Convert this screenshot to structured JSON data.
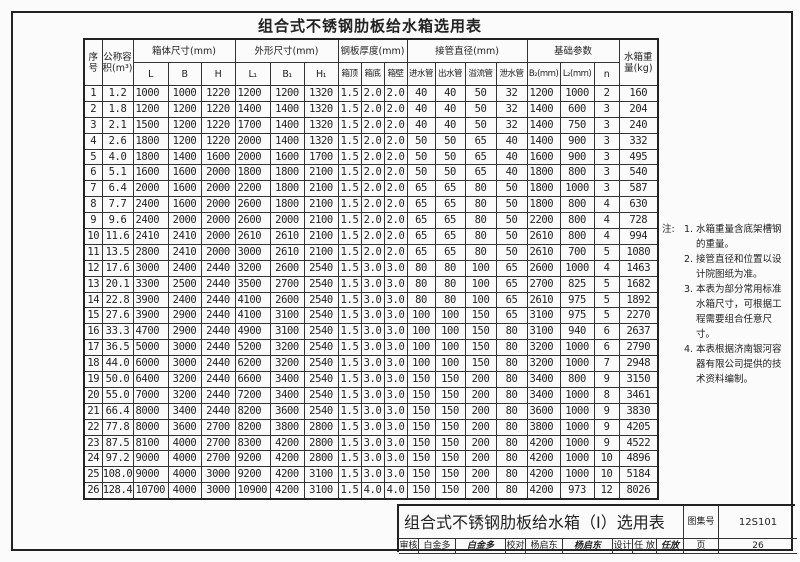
{
  "title": "组合式不锈钢肋板给水箱选用表",
  "table": {
    "header": {
      "seq": "序号",
      "volume": "公称容积(m³)",
      "box_size": "箱体尺寸(mm)",
      "outer_size": "外形尺寸(mm)",
      "plate_thickness": "钢板厚度(mm)",
      "pipe_diameter": "接管直径(mm)",
      "foundation": "基础参数",
      "weight": "水箱重量(kg)",
      "sub": [
        "L",
        "B",
        "H",
        "L₁",
        "B₁",
        "H₁",
        "箱顶",
        "箱底",
        "箱壁",
        "进水管",
        "出水管",
        "溢流管",
        "泄水管",
        "B₂(mm)",
        "L₂(mm)",
        "n"
      ]
    },
    "rows": [
      [
        "1",
        "1.2",
        "1000",
        "1000",
        "1220",
        "1200",
        "1200",
        "1320",
        "1.5",
        "2.0",
        "2.0",
        "40",
        "40",
        "50",
        "32",
        "1200",
        "1000",
        "2",
        "160"
      ],
      [
        "2",
        "1.8",
        "1200",
        "1200",
        "1220",
        "1400",
        "1400",
        "1320",
        "1.5",
        "2.0",
        "2.0",
        "40",
        "40",
        "50",
        "32",
        "1400",
        "600",
        "3",
        "204"
      ],
      [
        "3",
        "2.1",
        "1500",
        "1200",
        "1220",
        "1700",
        "1400",
        "1320",
        "1.5",
        "2.0",
        "2.0",
        "40",
        "40",
        "50",
        "32",
        "1400",
        "750",
        "3",
        "240"
      ],
      [
        "4",
        "2.6",
        "1800",
        "1200",
        "1220",
        "2000",
        "1400",
        "1320",
        "1.5",
        "2.0",
        "2.0",
        "50",
        "50",
        "65",
        "40",
        "1400",
        "900",
        "3",
        "332"
      ],
      [
        "5",
        "4.0",
        "1800",
        "1400",
        "1600",
        "2000",
        "1600",
        "1700",
        "1.5",
        "2.0",
        "2.0",
        "50",
        "50",
        "65",
        "40",
        "1600",
        "900",
        "3",
        "495"
      ],
      [
        "6",
        "5.1",
        "1600",
        "1600",
        "2000",
        "1800",
        "1800",
        "2100",
        "1.5",
        "2.0",
        "2.0",
        "50",
        "50",
        "65",
        "40",
        "1800",
        "800",
        "3",
        "540"
      ],
      [
        "7",
        "6.4",
        "2000",
        "1600",
        "2000",
        "2200",
        "1800",
        "2100",
        "1.5",
        "2.0",
        "2.0",
        "65",
        "65",
        "80",
        "50",
        "1800",
        "1000",
        "3",
        "587"
      ],
      [
        "8",
        "7.7",
        "2400",
        "1600",
        "2000",
        "2600",
        "1800",
        "2100",
        "1.5",
        "2.0",
        "2.0",
        "65",
        "65",
        "80",
        "50",
        "1800",
        "800",
        "4",
        "630"
      ],
      [
        "9",
        "9.6",
        "2400",
        "2000",
        "2000",
        "2600",
        "2000",
        "2100",
        "1.5",
        "2.0",
        "2.0",
        "65",
        "65",
        "80",
        "50",
        "2200",
        "800",
        "4",
        "728"
      ],
      [
        "10",
        "11.6",
        "2410",
        "2410",
        "2000",
        "2610",
        "2610",
        "2100",
        "1.5",
        "2.0",
        "2.0",
        "65",
        "65",
        "80",
        "50",
        "2610",
        "800",
        "4",
        "994"
      ],
      [
        "11",
        "13.5",
        "2800",
        "2410",
        "2000",
        "3000",
        "2610",
        "2100",
        "1.5",
        "2.0",
        "2.0",
        "65",
        "65",
        "80",
        "50",
        "2610",
        "700",
        "5",
        "1080"
      ],
      [
        "12",
        "17.6",
        "3000",
        "2400",
        "2440",
        "3200",
        "2600",
        "2540",
        "1.5",
        "3.0",
        "3.0",
        "80",
        "80",
        "100",
        "65",
        "2600",
        "1000",
        "4",
        "1463"
      ],
      [
        "13",
        "20.1",
        "3300",
        "2500",
        "2440",
        "3500",
        "2700",
        "2540",
        "1.5",
        "3.0",
        "3.0",
        "80",
        "80",
        "100",
        "65",
        "2700",
        "825",
        "5",
        "1682"
      ],
      [
        "14",
        "22.8",
        "3900",
        "2400",
        "2440",
        "4100",
        "2600",
        "2540",
        "1.5",
        "3.0",
        "3.0",
        "80",
        "80",
        "100",
        "65",
        "2610",
        "975",
        "5",
        "1892"
      ],
      [
        "15",
        "27.6",
        "3900",
        "2900",
        "2440",
        "4100",
        "3100",
        "2540",
        "1.5",
        "3.0",
        "3.0",
        "100",
        "100",
        "150",
        "65",
        "3100",
        "975",
        "5",
        "2270"
      ],
      [
        "16",
        "33.3",
        "4700",
        "2900",
        "2440",
        "4900",
        "3100",
        "2540",
        "1.5",
        "3.0",
        "3.0",
        "100",
        "100",
        "150",
        "80",
        "3100",
        "940",
        "6",
        "2637"
      ],
      [
        "17",
        "36.5",
        "5000",
        "3000",
        "2440",
        "5200",
        "3200",
        "2540",
        "1.5",
        "3.0",
        "3.0",
        "100",
        "100",
        "150",
        "80",
        "3200",
        "1000",
        "6",
        "2790"
      ],
      [
        "18",
        "44.0",
        "6000",
        "3000",
        "2440",
        "6200",
        "3200",
        "2540",
        "1.5",
        "3.0",
        "3.0",
        "100",
        "100",
        "150",
        "80",
        "3200",
        "1000",
        "7",
        "2948"
      ],
      [
        "19",
        "50.0",
        "6400",
        "3200",
        "2440",
        "6600",
        "3400",
        "2540",
        "1.5",
        "3.0",
        "3.0",
        "150",
        "150",
        "200",
        "80",
        "3400",
        "800",
        "9",
        "3150"
      ],
      [
        "20",
        "55.0",
        "7000",
        "3200",
        "2440",
        "7200",
        "3400",
        "2540",
        "1.5",
        "3.0",
        "3.0",
        "150",
        "150",
        "200",
        "80",
        "3400",
        "1000",
        "8",
        "3461"
      ],
      [
        "21",
        "66.4",
        "8000",
        "3400",
        "2440",
        "8200",
        "3600",
        "2540",
        "1.5",
        "3.0",
        "3.0",
        "150",
        "150",
        "200",
        "80",
        "3600",
        "1000",
        "9",
        "3830"
      ],
      [
        "22",
        "77.8",
        "8000",
        "3600",
        "2700",
        "8200",
        "3800",
        "2800",
        "1.5",
        "3.0",
        "3.0",
        "150",
        "150",
        "200",
        "80",
        "3800",
        "1000",
        "9",
        "4205"
      ],
      [
        "23",
        "87.5",
        "8100",
        "4000",
        "2700",
        "8300",
        "4200",
        "2800",
        "1.5",
        "3.0",
        "3.0",
        "150",
        "150",
        "200",
        "80",
        "4200",
        "1000",
        "9",
        "4522"
      ],
      [
        "24",
        "97.2",
        "9000",
        "4000",
        "2700",
        "9200",
        "4200",
        "2800",
        "1.5",
        "3.0",
        "3.0",
        "150",
        "150",
        "200",
        "80",
        "4200",
        "1000",
        "10",
        "4896"
      ],
      [
        "25",
        "108.0",
        "9000",
        "4000",
        "3000",
        "9200",
        "4200",
        "3100",
        "1.5",
        "3.0",
        "3.0",
        "150",
        "150",
        "200",
        "80",
        "4200",
        "1000",
        "10",
        "5184"
      ],
      [
        "26",
        "128.4",
        "10700",
        "4000",
        "3000",
        "10900",
        "4200",
        "3100",
        "1.5",
        "4.0",
        "4.0",
        "150",
        "150",
        "200",
        "80",
        "4200",
        "973",
        "12",
        "8026"
      ]
    ]
  },
  "notes": {
    "label": "注:",
    "items": [
      {
        "num": "1.",
        "text": "水箱重量含底架槽钢的重量。"
      },
      {
        "num": "2.",
        "text": "接管直径和位置以设计院图纸为准。"
      },
      {
        "num": "3.",
        "text": "本表为部分常用标准水箱尺寸，可根据工程需要组合任意尺寸。"
      },
      {
        "num": "4.",
        "text": "本表根据济南银河容器有限公司提供的技术资料编制。"
      }
    ]
  },
  "title_block": {
    "drawing_title": "组合式不锈钢肋板给水箱（I）选用表",
    "atlas_no_label": "图集号",
    "atlas_no": "12S101",
    "review_label": "审核",
    "reviewer": "白金多",
    "reviewer_signature": "白金多",
    "check_label": "校对",
    "checker": "杨启东",
    "checker_signature": "杨启东",
    "design_label": "设计",
    "designer": "任 放",
    "designer_signature": "任放",
    "page_label": "页",
    "page": "26"
  }
}
